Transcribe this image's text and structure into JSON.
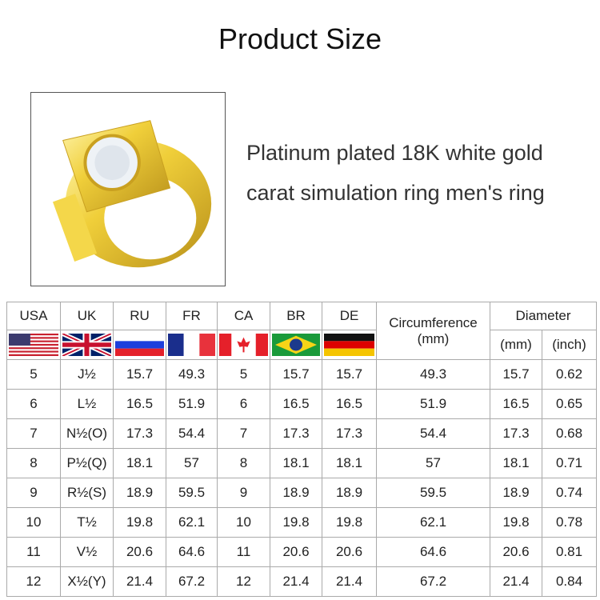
{
  "title": "Product Size",
  "description": [
    "Platinum plated 18K white gold",
    "carat simulation ring men's ring"
  ],
  "table": {
    "countries": [
      {
        "code": "USA",
        "flag": "us-flag"
      },
      {
        "code": "UK",
        "flag": "uk-flag"
      },
      {
        "code": "RU",
        "flag": "russia-flag"
      },
      {
        "code": "FR",
        "flag": "france-flag"
      },
      {
        "code": "CA",
        "flag": "canada-flag"
      },
      {
        "code": "BR",
        "flag": "brazil-flag"
      },
      {
        "code": "DE",
        "flag": "germany-flag"
      }
    ],
    "circumference": "Circumference",
    "circumference_unit": "(mm)",
    "diameter": "Diameter",
    "diameter_mm": "(mm)",
    "diameter_inch": "(inch)",
    "rows": [
      [
        "5",
        "J½",
        "15.7",
        "49.3",
        "5",
        "15.7",
        "15.7",
        "49.3",
        "15.7",
        "0.62"
      ],
      [
        "6",
        "L½",
        "16.5",
        "51.9",
        "6",
        "16.5",
        "16.5",
        "51.9",
        "16.5",
        "0.65"
      ],
      [
        "7",
        "N½(O)",
        "17.3",
        "54.4",
        "7",
        "17.3",
        "17.3",
        "54.4",
        "17.3",
        "0.68"
      ],
      [
        "8",
        "P½(Q)",
        "18.1",
        "57",
        "8",
        "18.1",
        "18.1",
        "57",
        "18.1",
        "0.71"
      ],
      [
        "9",
        "R½(S)",
        "18.9",
        "59.5",
        "9",
        "18.9",
        "18.9",
        "59.5",
        "18.9",
        "0.74"
      ],
      [
        "10",
        "T½",
        "19.8",
        "62.1",
        "10",
        "19.8",
        "19.8",
        "62.1",
        "19.8",
        "0.78"
      ],
      [
        "11",
        "V½",
        "20.6",
        "64.6",
        "11",
        "20.6",
        "20.6",
        "64.6",
        "20.6",
        "0.81"
      ],
      [
        "12",
        "X½(Y)",
        "21.4",
        "67.2",
        "12",
        "21.4",
        "21.4",
        "67.2",
        "21.4",
        "0.84"
      ]
    ]
  },
  "colors": {
    "gold": "#e8c633",
    "border": "#aaaaaa"
  }
}
